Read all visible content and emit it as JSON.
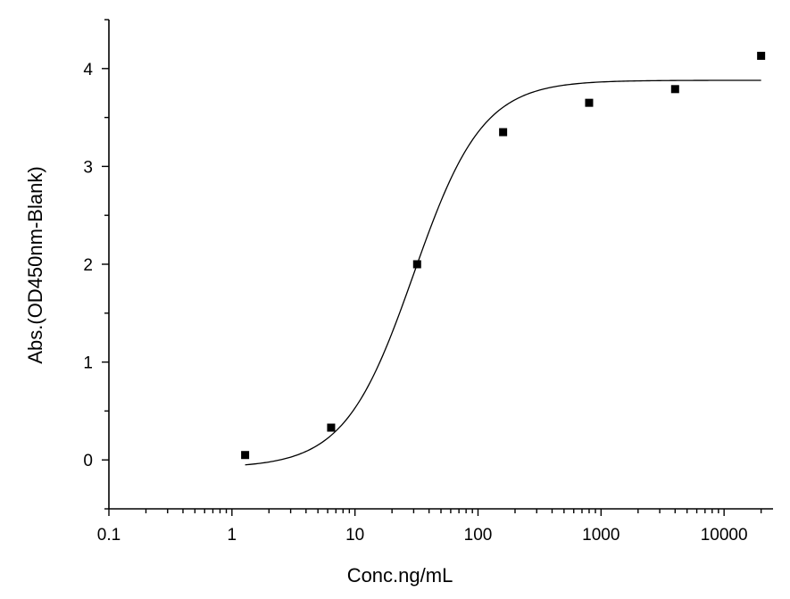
{
  "chart_data": {
    "type": "scatter",
    "title": "",
    "xlabel": "Conc.ng/mL",
    "ylabel": "Abs.(OD450nm-Blank)",
    "x_scale": "log",
    "xlim": [
      0.1,
      25000
    ],
    "ylim": [
      -0.5,
      4.5
    ],
    "x_ticks": [
      0.1,
      1,
      10,
      100,
      1000,
      10000
    ],
    "x_tick_labels": [
      "0.1",
      "1",
      "10",
      "100",
      "1000",
      "10000"
    ],
    "y_ticks": [
      0,
      1,
      2,
      3,
      4
    ],
    "y_tick_labels": [
      "0",
      "1",
      "2",
      "3",
      "4"
    ],
    "grid": false,
    "series": [
      {
        "kind": "points",
        "marker": "square",
        "color": "#000000",
        "x": [
          1.28,
          6.4,
          32,
          160,
          800,
          4000,
          20000
        ],
        "y": [
          0.05,
          0.33,
          2.0,
          3.35,
          3.65,
          3.79,
          4.13
        ]
      },
      {
        "kind": "fit-curve",
        "model": "4PL",
        "color": "#000000",
        "x_range": [
          1.28,
          20000
        ],
        "params": {
          "bottom": -0.08,
          "top": 3.88,
          "ec50": 30,
          "hill": 1.55
        }
      }
    ]
  }
}
